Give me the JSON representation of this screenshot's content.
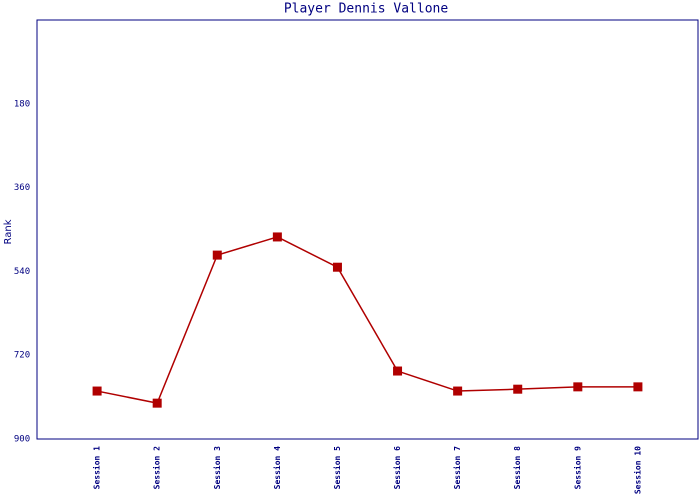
{
  "chart_data": {
    "type": "line",
    "title": "Player Dennis Vallone",
    "y_label": "Rank",
    "categories": [
      "Session 1",
      "Session 2",
      "Session 3",
      "Session 4",
      "Session 5",
      "Session 6",
      "Session 7",
      "Session 8",
      "Session 9",
      "Session 10"
    ],
    "series": [
      {
        "values": [
          797,
          823,
          505,
          466,
          531,
          754,
          797,
          793,
          788,
          788
        ],
        "color": "#b00000"
      }
    ],
    "ylim": [
      900,
      0
    ],
    "yticks": [
      180,
      360,
      540,
      720,
      900
    ],
    "grid": false
  }
}
